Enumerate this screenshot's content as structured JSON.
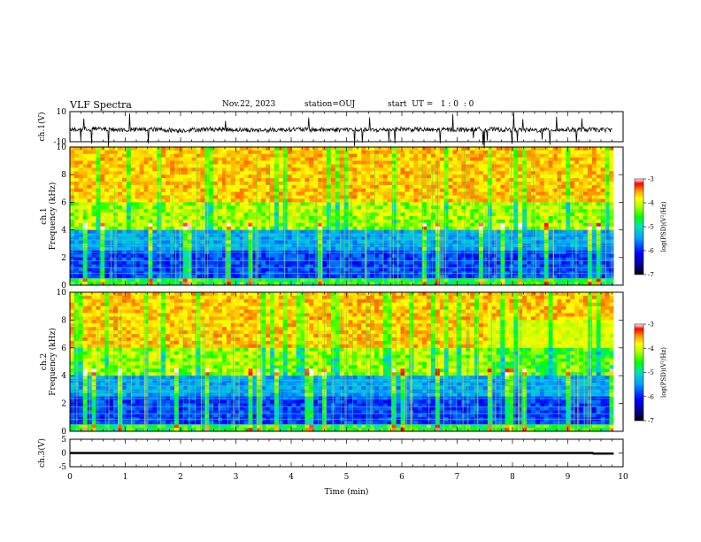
{
  "header": {
    "title": "VLF Spectra",
    "date": "Nov.22, 2023",
    "station": "station=OUJ",
    "start": "start  UT =   1 : 0  : 0"
  },
  "chart_data": [
    {
      "type": "line",
      "ylabel": "ch.1(V)",
      "ylim": [
        -10,
        10
      ],
      "yticks": [
        "10",
        "-10"
      ],
      "x": [
        0,
        0.5,
        1,
        1.5,
        2,
        2.5,
        3,
        3.5,
        4,
        4.5,
        5,
        5.5,
        6,
        6.5,
        7,
        7.5,
        8,
        8.5,
        9,
        9.5,
        9.8
      ],
      "values": [
        -2,
        -1.5,
        -2.2,
        -1.8,
        -2.5,
        -1.6,
        -2,
        -2.4,
        -1.7,
        -2.1,
        -1.9,
        -2.3,
        -1.6,
        -2.2,
        -2,
        -1.8,
        -2.1,
        -2.4,
        -1.9,
        -2,
        -2.2
      ]
    },
    {
      "type": "heatmap",
      "channel": "ch.1",
      "ylabel": "Frequency  (kHz)",
      "ylim": [
        0,
        10
      ],
      "yticks": [
        "0",
        "2",
        "4",
        "6",
        "8",
        "10"
      ],
      "xlim": [
        0,
        10
      ],
      "xlim_data": [
        0,
        9.83
      ],
      "colorbar": {
        "label": "log(PSD)(V²/Hz)",
        "range": [
          -7,
          -3
        ],
        "ticks": [
          "-3",
          "-4",
          "-5",
          "-6",
          "-7"
        ]
      }
    },
    {
      "type": "heatmap",
      "channel": "ch.2",
      "ylabel": "Frequency  (kHz)",
      "ylim": [
        0,
        10
      ],
      "yticks": [
        "0",
        "2",
        "4",
        "6",
        "8",
        "10"
      ],
      "xlim": [
        0,
        10
      ],
      "xlim_data": [
        0,
        9.83
      ],
      "colorbar": {
        "label": "log(PSD)(V²/Hz)",
        "range": [
          -7,
          -3
        ],
        "ticks": [
          "-3",
          "-4",
          "-5",
          "-6",
          "-7"
        ]
      }
    },
    {
      "type": "line",
      "ylabel": "ch.3(V)",
      "ylim": [
        -5,
        5
      ],
      "yticks": [
        "5",
        "0",
        "-5"
      ],
      "x": [
        0,
        9.45,
        9.46,
        9.83
      ],
      "values": [
        0,
        0,
        -0.2,
        -0.2
      ]
    }
  ],
  "xaxis": {
    "label": "Time  (min)",
    "ticks": [
      "0",
      "1",
      "2",
      "3",
      "4",
      "5",
      "6",
      "7",
      "8",
      "9",
      "10"
    ],
    "xlim": [
      0,
      10
    ]
  }
}
